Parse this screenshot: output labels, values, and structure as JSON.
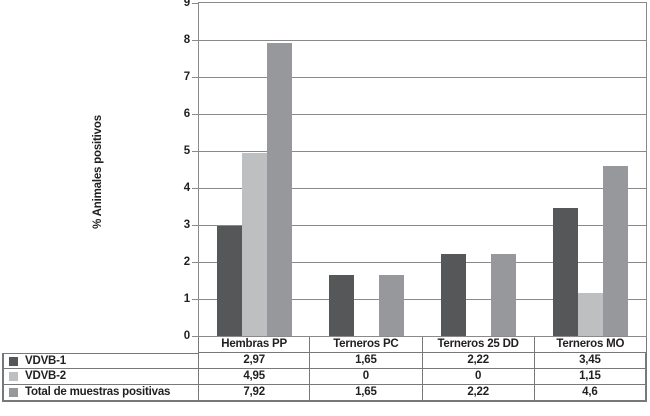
{
  "chart_data": {
    "type": "bar",
    "title": "",
    "ylabel": "% Animales positivos",
    "xlabel": "",
    "ylim": [
      0,
      9
    ],
    "yticks": [
      "0",
      "1",
      "2",
      "3",
      "4",
      "5",
      "6",
      "7",
      "8",
      "9"
    ],
    "grid": true,
    "legend_position": "table-left",
    "categories": [
      "Hembras PP",
      "Terneros PC",
      "Terneros 25 DD",
      "Terneros MO"
    ],
    "series": [
      {
        "name": "VDVB-1",
        "color": "#565759",
        "values": [
          2.97,
          1.65,
          2.22,
          3.45
        ],
        "display": [
          "2,97",
          "1,65",
          "2,22",
          "3,45"
        ]
      },
      {
        "name": "VDVB-2",
        "color": "#bdbfc1",
        "values": [
          4.95,
          0,
          0,
          1.15
        ],
        "display": [
          "4,95",
          "0",
          "0",
          "1,15"
        ]
      },
      {
        "name": "Total de muestras positivas",
        "color": "#97989b",
        "values": [
          7.92,
          1.65,
          2.22,
          4.6
        ],
        "display": [
          "7,92",
          "1,65",
          "2,22",
          "4,6"
        ]
      }
    ],
    "colors": {
      "grid": "#8a8a8a",
      "table_border": "#77787a",
      "text": "#231f20",
      "background": "#ffffff"
    }
  }
}
